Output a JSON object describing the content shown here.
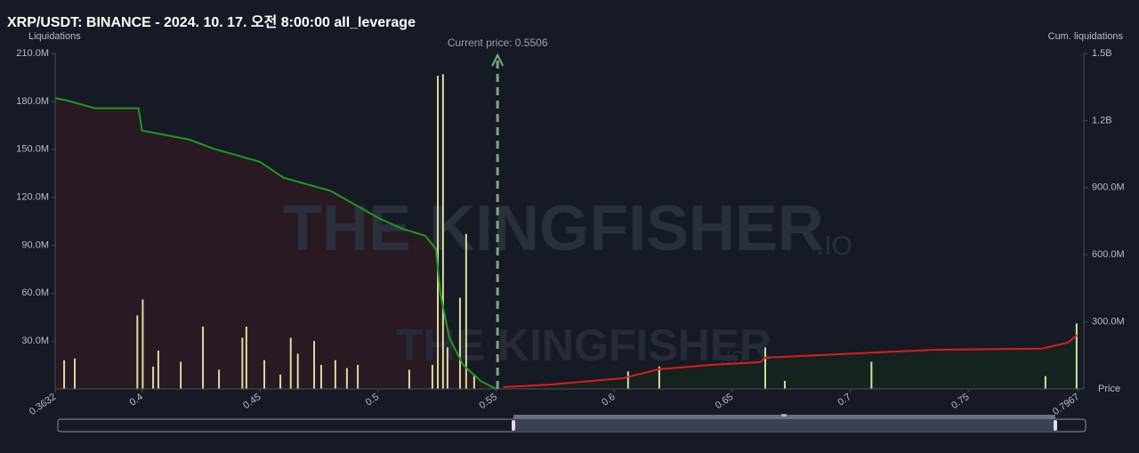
{
  "chart_data": {
    "type": "bar",
    "title": "XRP/USDT: BINANCE - 2024. 10. 17. 오전 8:00:00 all_leverage",
    "ylabel": "Liquidations",
    "y2label": "Cum. liquidations",
    "xlabel": "Price",
    "current_price_label": "Current price: 0.5506",
    "current_price": 0.5506,
    "watermark": "THE KINGFISHER",
    "watermark_suffix": ".IO",
    "xlim": [
      0.3632,
      0.7967
    ],
    "xticks": [
      0.3632,
      0.4,
      0.45,
      0.5,
      0.55,
      0.6,
      0.65,
      0.7,
      0.75,
      0.7967
    ],
    "ylim": [
      0,
      210000000
    ],
    "yticks": [
      {
        "value": 30000000,
        "label": "30.0M"
      },
      {
        "value": 60000000,
        "label": "60.0M"
      },
      {
        "value": 90000000,
        "label": "90.0M"
      },
      {
        "value": 120000000,
        "label": "120.0M"
      },
      {
        "value": 150000000,
        "label": "150.0M"
      },
      {
        "value": 180000000,
        "label": "180.0M"
      },
      {
        "value": 210000000,
        "label": "210.0M"
      }
    ],
    "y2lim": [
      0,
      1500000000
    ],
    "y2ticks": [
      {
        "value": 300000000,
        "label": "300.0M"
      },
      {
        "value": 600000000,
        "label": "600.0M"
      },
      {
        "value": 900000000,
        "label": "900.0M"
      },
      {
        "value": 1200000000,
        "label": "1.2B"
      },
      {
        "value": 1500000000,
        "label": "1.5B"
      }
    ],
    "series": [
      {
        "type": "bar",
        "color": "#d9dca0",
        "x": [
          0.367,
          0.3715,
          0.398,
          0.4003,
          0.4047,
          0.4069,
          0.4164,
          0.4258,
          0.4326,
          0.4425,
          0.4442,
          0.4518,
          0.4586,
          0.463,
          0.466,
          0.4729,
          0.4759,
          0.4819,
          0.4868,
          0.4914,
          0.5132,
          0.523,
          0.5253,
          0.5275,
          0.5294,
          0.5347,
          0.5373,
          0.5407
        ],
        "values": [
          18000000,
          19000000,
          46000000,
          56000000,
          14000000,
          24000000,
          17000000,
          39000000,
          12000000,
          32000000,
          39000000,
          18000000,
          9000000,
          32000000,
          22000000,
          30000000,
          15000000,
          18000000,
          13000000,
          15000000,
          12000000,
          15000000,
          196000000,
          197000000,
          26000000,
          57000000,
          97000000,
          9000000
        ]
      },
      {
        "type": "bar",
        "color": "#c9e6a0",
        "x": [
          0.6059,
          0.6191,
          0.664,
          0.6723,
          0.709,
          0.7827,
          0.7959
        ],
        "values": [
          11000000,
          14000000,
          26000000,
          5000000,
          17000000,
          8000000,
          41000000
        ]
      },
      {
        "type": "line",
        "axis": "y2",
        "color": "#1f9a1f",
        "fill": "#2a1a22",
        "x": [
          0.3632,
          0.368,
          0.38,
          0.3985,
          0.4,
          0.42,
          0.43,
          0.45,
          0.46,
          0.48,
          0.5,
          0.51,
          0.52,
          0.5245,
          0.5264,
          0.5302,
          0.536,
          0.5434,
          0.55
        ],
        "values": [
          1300000000,
          1290000000,
          1255000000,
          1255000000,
          1155000000,
          1115000000,
          1075000000,
          1015000000,
          944000000,
          885000000,
          765000000,
          717000000,
          685000000,
          625000000,
          426000000,
          227000000,
          108000000,
          36000000,
          0
        ]
      },
      {
        "type": "line",
        "axis": "y2",
        "color": "#e01b1b",
        "fill": "#15251f",
        "x": [
          0.553,
          0.5735,
          0.6037,
          0.619,
          0.6414,
          0.662,
          0.664,
          0.679,
          0.705,
          0.7356,
          0.781,
          0.7922,
          0.796
        ],
        "values": [
          8000000,
          20000000,
          48000000,
          88000000,
          108000000,
          120000000,
          140000000,
          147000000,
          160000000,
          175000000,
          180000000,
          207000000,
          240000000
        ]
      }
    ]
  }
}
